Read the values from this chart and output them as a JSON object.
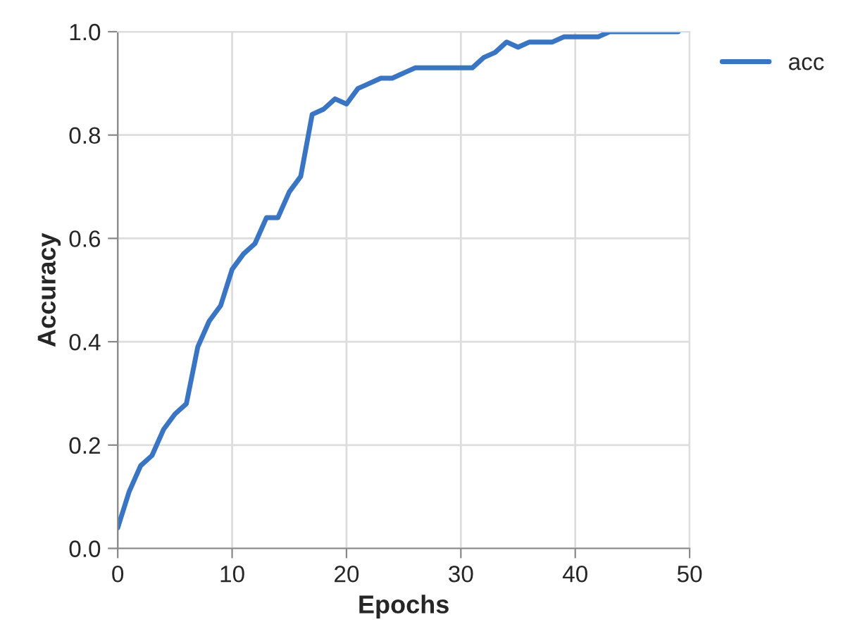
{
  "chart_data": {
    "type": "line",
    "xlabel": "Epochs",
    "ylabel": "Accuracy",
    "x": [
      0,
      1,
      2,
      3,
      4,
      5,
      6,
      7,
      8,
      9,
      10,
      11,
      12,
      13,
      14,
      15,
      16,
      17,
      18,
      19,
      20,
      21,
      22,
      23,
      24,
      25,
      26,
      27,
      28,
      29,
      30,
      31,
      32,
      33,
      34,
      35,
      36,
      37,
      38,
      39,
      40,
      41,
      42,
      43,
      44,
      45,
      46,
      47,
      48,
      49
    ],
    "series": [
      {
        "name": "acc",
        "color": "#3a75c4",
        "values": [
          0.04,
          0.11,
          0.16,
          0.18,
          0.23,
          0.26,
          0.28,
          0.39,
          0.44,
          0.47,
          0.54,
          0.57,
          0.59,
          0.64,
          0.64,
          0.69,
          0.72,
          0.84,
          0.85,
          0.87,
          0.86,
          0.89,
          0.9,
          0.91,
          0.91,
          0.92,
          0.93,
          0.93,
          0.93,
          0.93,
          0.93,
          0.93,
          0.95,
          0.96,
          0.98,
          0.97,
          0.98,
          0.98,
          0.98,
          0.99,
          0.99,
          0.99,
          0.99,
          1.0,
          1.0,
          1.0,
          1.0,
          1.0,
          1.0,
          1.0
        ]
      }
    ],
    "xlim": [
      0,
      50
    ],
    "xticks": [
      0,
      10,
      20,
      30,
      40,
      50
    ],
    "ylim": [
      0,
      1
    ],
    "yticks": [
      {
        "value": 0,
        "label": "0.0"
      },
      {
        "value": 0.2,
        "label": "0.2"
      },
      {
        "value": 0.4,
        "label": "0.4"
      },
      {
        "value": 0.6,
        "label": "0.6"
      },
      {
        "value": 0.8,
        "label": "0.8"
      },
      {
        "value": 1,
        "label": "1.0"
      }
    ],
    "grid": true,
    "legend": "top right",
    "line_style": "solid"
  }
}
